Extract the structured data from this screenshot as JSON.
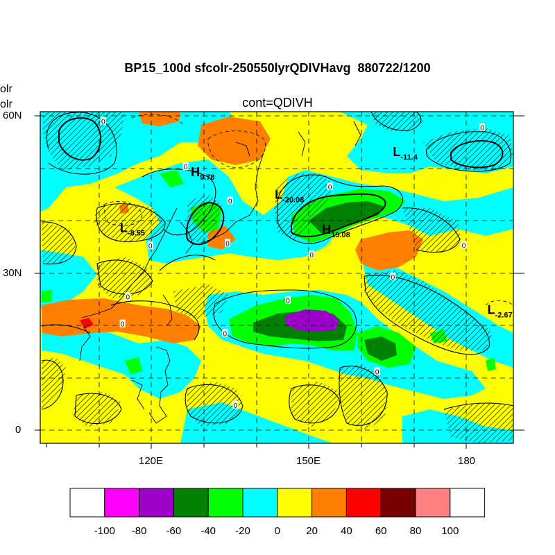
{
  "title": "BP15_100d sfcolr-250550lyrQDIVHavg  880722/1200",
  "subtitle": "cont=QDIVH",
  "left_edge_text": [
    "olr",
    "olr"
  ],
  "map": {
    "lat_ticks": [
      "60N",
      "30N",
      "0"
    ],
    "lon_ticks": [
      "120E",
      "150E",
      "180"
    ],
    "extent": {
      "lon_min": 100,
      "lon_max": 190,
      "lat_min": -3,
      "lat_max": 61
    },
    "centers": [
      {
        "letter": "H",
        "value": "9.78",
        "lon": 127.5,
        "lat": 48.5
      },
      {
        "letter": "L",
        "value": "-20.08",
        "lon": 143.5,
        "lat": 44.2
      },
      {
        "letter": "L",
        "value": "-11.4",
        "lon": 166.0,
        "lat": 52.3
      },
      {
        "letter": "H",
        "value": "15.08",
        "lon": 152.5,
        "lat": 37.5
      },
      {
        "letter": "L",
        "value": "-8.55",
        "lon": 114.0,
        "lat": 37.8
      },
      {
        "letter": "L",
        "value": "-2.67",
        "lon": 184.0,
        "lat": 22.2
      }
    ],
    "zero_labels": [
      {
        "text": "0",
        "lon": 110.8,
        "lat": 59.0
      },
      {
        "text": "0",
        "lon": 126.5,
        "lat": 50.3
      },
      {
        "text": "0",
        "lon": 135.0,
        "lat": 43.8
      },
      {
        "text": "0",
        "lon": 119.8,
        "lat": 35.2
      },
      {
        "text": "0",
        "lon": 134.5,
        "lat": 35.7
      },
      {
        "text": "0",
        "lon": 154.0,
        "lat": 46.5
      },
      {
        "text": "0",
        "lon": 183.0,
        "lat": 57.8
      },
      {
        "text": "0",
        "lon": 150.5,
        "lat": 33.5
      },
      {
        "text": "0",
        "lon": 179.5,
        "lat": 35.3
      },
      {
        "text": "0",
        "lon": 115.5,
        "lat": 25.5
      },
      {
        "text": "0",
        "lon": 114.5,
        "lat": 20.3
      },
      {
        "text": "0",
        "lon": 146.0,
        "lat": 24.8
      },
      {
        "text": "0",
        "lon": 134.0,
        "lat": 18.5
      },
      {
        "text": "0",
        "lon": 166.0,
        "lat": 29.3
      },
      {
        "text": "0",
        "lon": 163.0,
        "lat": 11.2
      },
      {
        "text": "0",
        "lon": 136.0,
        "lat": 4.8
      }
    ]
  },
  "colorbar": {
    "colors": [
      "#ffffff",
      "#ff00ff",
      "#9a00c8",
      "#008000",
      "#00ff00",
      "#00ffff",
      "#ffff00",
      "#ff8000",
      "#ff0000",
      "#780000",
      "#ff8080",
      "#ffffff"
    ],
    "labels": [
      "-100",
      "-80",
      "-60",
      "-40",
      "-20",
      "0",
      "20",
      "40",
      "60",
      "80",
      "100"
    ]
  }
}
